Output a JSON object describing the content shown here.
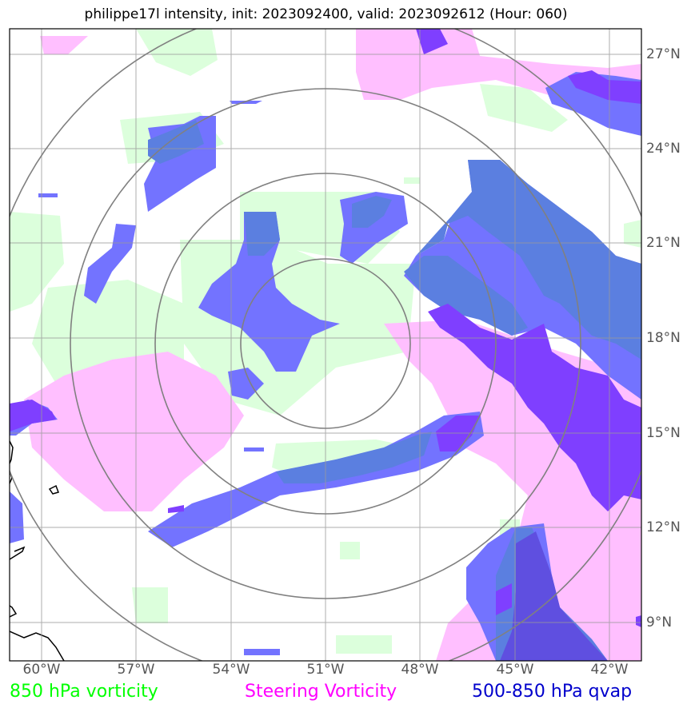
{
  "title": "philippe17l intensity, init: 2023092400, valid: 2023092612 (Hour: 060)",
  "lon_labels": [
    "60°W",
    "57°W",
    "54°W",
    "51°W",
    "48°W",
    "45°W",
    "42°W"
  ],
  "lat_labels": [
    "27°N",
    "24°N",
    "21°N",
    "18°N",
    "15°N",
    "12°N",
    "9°N"
  ],
  "legend": [
    {
      "label": "850 hPa vorticity",
      "color": "#00ff00"
    },
    {
      "label": "Steering Vorticity",
      "color": "#ff00ff"
    },
    {
      "label": "500-850 hPa qvap",
      "color": "#0000cc"
    }
  ],
  "colors": {
    "vorticity_850": "#dcffdc",
    "steering_vorticity": "#ffbfff",
    "qvap": "#7373ff",
    "qvap_dark": "#7f3fff",
    "overlap": "#5b7fe0",
    "grid": "#999999",
    "range_rings": "#808080"
  }
}
